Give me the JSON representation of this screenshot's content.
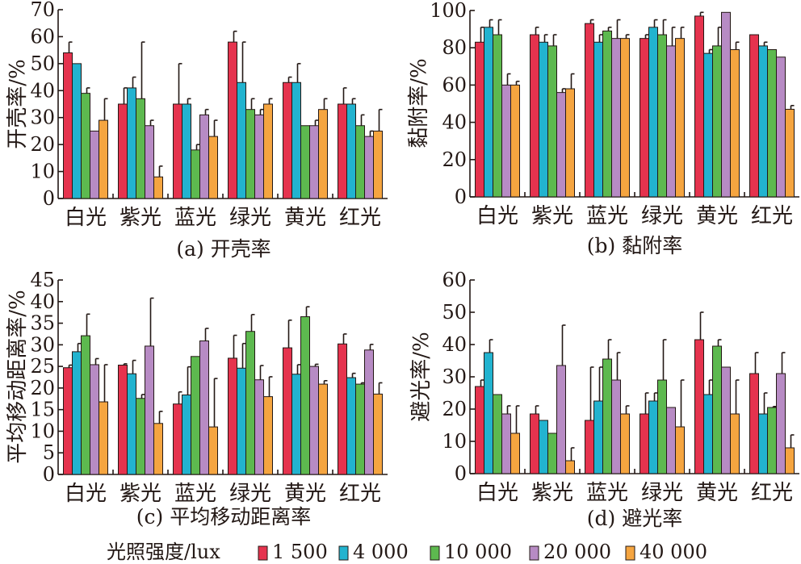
{
  "chart_data": [
    {
      "type": "bar",
      "caption": "(a) 开壳率",
      "ylabel": "开壳率/%",
      "ylim": [
        0,
        70
      ],
      "yticks": [
        0,
        10,
        20,
        30,
        40,
        50,
        60,
        70
      ],
      "categories": [
        "白光",
        "紫光",
        "蓝光",
        "绿光",
        "黄光",
        "红光"
      ],
      "series": [
        {
          "name": "1 500",
          "values": [
            54,
            35,
            35,
            58,
            43,
            35
          ],
          "errors": [
            4,
            6,
            15,
            4,
            2,
            6
          ]
        },
        {
          "name": "4 000",
          "values": [
            50,
            41,
            35,
            43,
            43,
            35
          ],
          "errors": [
            0,
            4,
            2,
            15,
            7,
            2
          ]
        },
        {
          "name": "10 000",
          "values": [
            39,
            37,
            18,
            33,
            27,
            27
          ],
          "errors": [
            2,
            21,
            2,
            4,
            0,
            4
          ]
        },
        {
          "name": "20 000",
          "values": [
            25,
            27,
            31,
            31,
            27,
            23
          ],
          "errors": [
            0,
            2,
            2,
            2,
            2,
            2
          ]
        },
        {
          "name": "40 000",
          "values": [
            29,
            8,
            23,
            35,
            33,
            25
          ],
          "errors": [
            8,
            4,
            6,
            2,
            4,
            8
          ]
        }
      ]
    },
    {
      "type": "bar",
      "caption": "(b)  黏附率",
      "ylabel": "黏附率/%",
      "ylim": [
        0,
        100
      ],
      "yticks": [
        0,
        20,
        40,
        60,
        80,
        100
      ],
      "categories": [
        "白光",
        "紫光",
        "蓝光",
        "绿光",
        "黄光",
        "红光"
      ],
      "series": [
        {
          "name": "1 500",
          "values": [
            83,
            87,
            93,
            85,
            97,
            87
          ],
          "errors": [
            8,
            4,
            2,
            2,
            2,
            0
          ]
        },
        {
          "name": "4 000",
          "values": [
            91,
            83,
            83,
            91,
            77,
            81
          ],
          "errors": [
            4,
            4,
            4,
            4,
            2,
            2
          ]
        },
        {
          "name": "10 000",
          "values": [
            87,
            81,
            89,
            87,
            81,
            79
          ],
          "errors": [
            8,
            6,
            2,
            8,
            10,
            0
          ]
        },
        {
          "name": "20 000",
          "values": [
            60,
            56,
            85,
            81,
            99,
            75
          ],
          "errors": [
            6,
            2,
            10,
            10,
            0,
            0
          ]
        },
        {
          "name": "40 000",
          "values": [
            60,
            58,
            85,
            85,
            79,
            47
          ],
          "errors": [
            2,
            8,
            2,
            6,
            4,
            2
          ]
        }
      ]
    },
    {
      "type": "bar",
      "caption": "(c)  平均移动距离率",
      "ylabel": "平均移动距离率/%",
      "ylim": [
        0,
        45
      ],
      "yticks": [
        0,
        5,
        10,
        15,
        20,
        25,
        30,
        35,
        40,
        45
      ],
      "categories": [
        "白光",
        "紫光",
        "蓝光",
        "绿光",
        "黄光",
        "红光"
      ],
      "series": [
        {
          "name": "1 500",
          "values": [
            24.7,
            25.3,
            16.3,
            26.9,
            29.3,
            30.2
          ],
          "errors": [
            0.6,
            0.3,
            2.8,
            5.3,
            6.4,
            2.3
          ]
        },
        {
          "name": "4 000",
          "values": [
            28.4,
            23.3,
            18.4,
            24.6,
            23.2,
            22.4
          ],
          "errors": [
            1.9,
            3.1,
            6.5,
            5.7,
            2.2,
            1.0
          ]
        },
        {
          "name": "10 000",
          "values": [
            32.1,
            17.6,
            27.3,
            33.1,
            36.5,
            20.9
          ],
          "errors": [
            5.0,
            0.9,
            0,
            3.9,
            2.3,
            0.3
          ]
        },
        {
          "name": "20 000",
          "values": [
            25.4,
            29.7,
            30.9,
            21.9,
            25.0,
            28.8
          ],
          "errors": [
            1.4,
            11.1,
            2.9,
            3.3,
            0.5,
            1.3
          ]
        },
        {
          "name": "40 000",
          "values": [
            16.8,
            11.8,
            11.0,
            18.0,
            20.9,
            18.6
          ],
          "errors": [
            8.6,
            2.8,
            11.2,
            4.6,
            0.8,
            2.6
          ]
        }
      ]
    },
    {
      "type": "bar",
      "caption": "(d)  避光率",
      "ylabel": "避光率/%",
      "ylim": [
        0,
        60
      ],
      "yticks": [
        0,
        10,
        20,
        30,
        40,
        50,
        60
      ],
      "categories": [
        "白光",
        "紫光",
        "蓝光",
        "绿光",
        "黄光",
        "红光"
      ],
      "series": [
        {
          "name": "1 500",
          "values": [
            27,
            18.5,
            16.5,
            18.5,
            41.5,
            31
          ],
          "errors": [
            2,
            2.5,
            16.5,
            6.5,
            8.5,
            6.5
          ]
        },
        {
          "name": "4 000",
          "values": [
            37.5,
            16.5,
            22.5,
            22.5,
            24.5,
            18.5
          ],
          "errors": [
            4,
            0,
            10.5,
            2.5,
            4.5,
            6.5
          ]
        },
        {
          "name": "10 000",
          "values": [
            24.5,
            12.5,
            35.5,
            29,
            39.5,
            20.5
          ],
          "errors": [
            0,
            0,
            6,
            12.5,
            2,
            0.3
          ]
        },
        {
          "name": "20 000",
          "values": [
            18.5,
            33.5,
            29,
            20.5,
            33,
            31
          ],
          "errors": [
            2.5,
            12.5,
            8.5,
            0,
            0,
            6.5
          ]
        },
        {
          "name": "40 000",
          "values": [
            12.5,
            4,
            18.5,
            14.5,
            18.5,
            8
          ],
          "errors": [
            8.5,
            4,
            2.5,
            14.5,
            10.5,
            4
          ]
        }
      ]
    }
  ],
  "legend": {
    "title": "光照强度/lux",
    "items": [
      {
        "label": "1 500",
        "color": "#e5334e"
      },
      {
        "label": "4 000",
        "color": "#22b3cf"
      },
      {
        "label": "10 000",
        "color": "#5db94f"
      },
      {
        "label": "20 000",
        "color": "#b78bc4"
      },
      {
        "label": "40 000",
        "color": "#f5a540"
      }
    ]
  }
}
